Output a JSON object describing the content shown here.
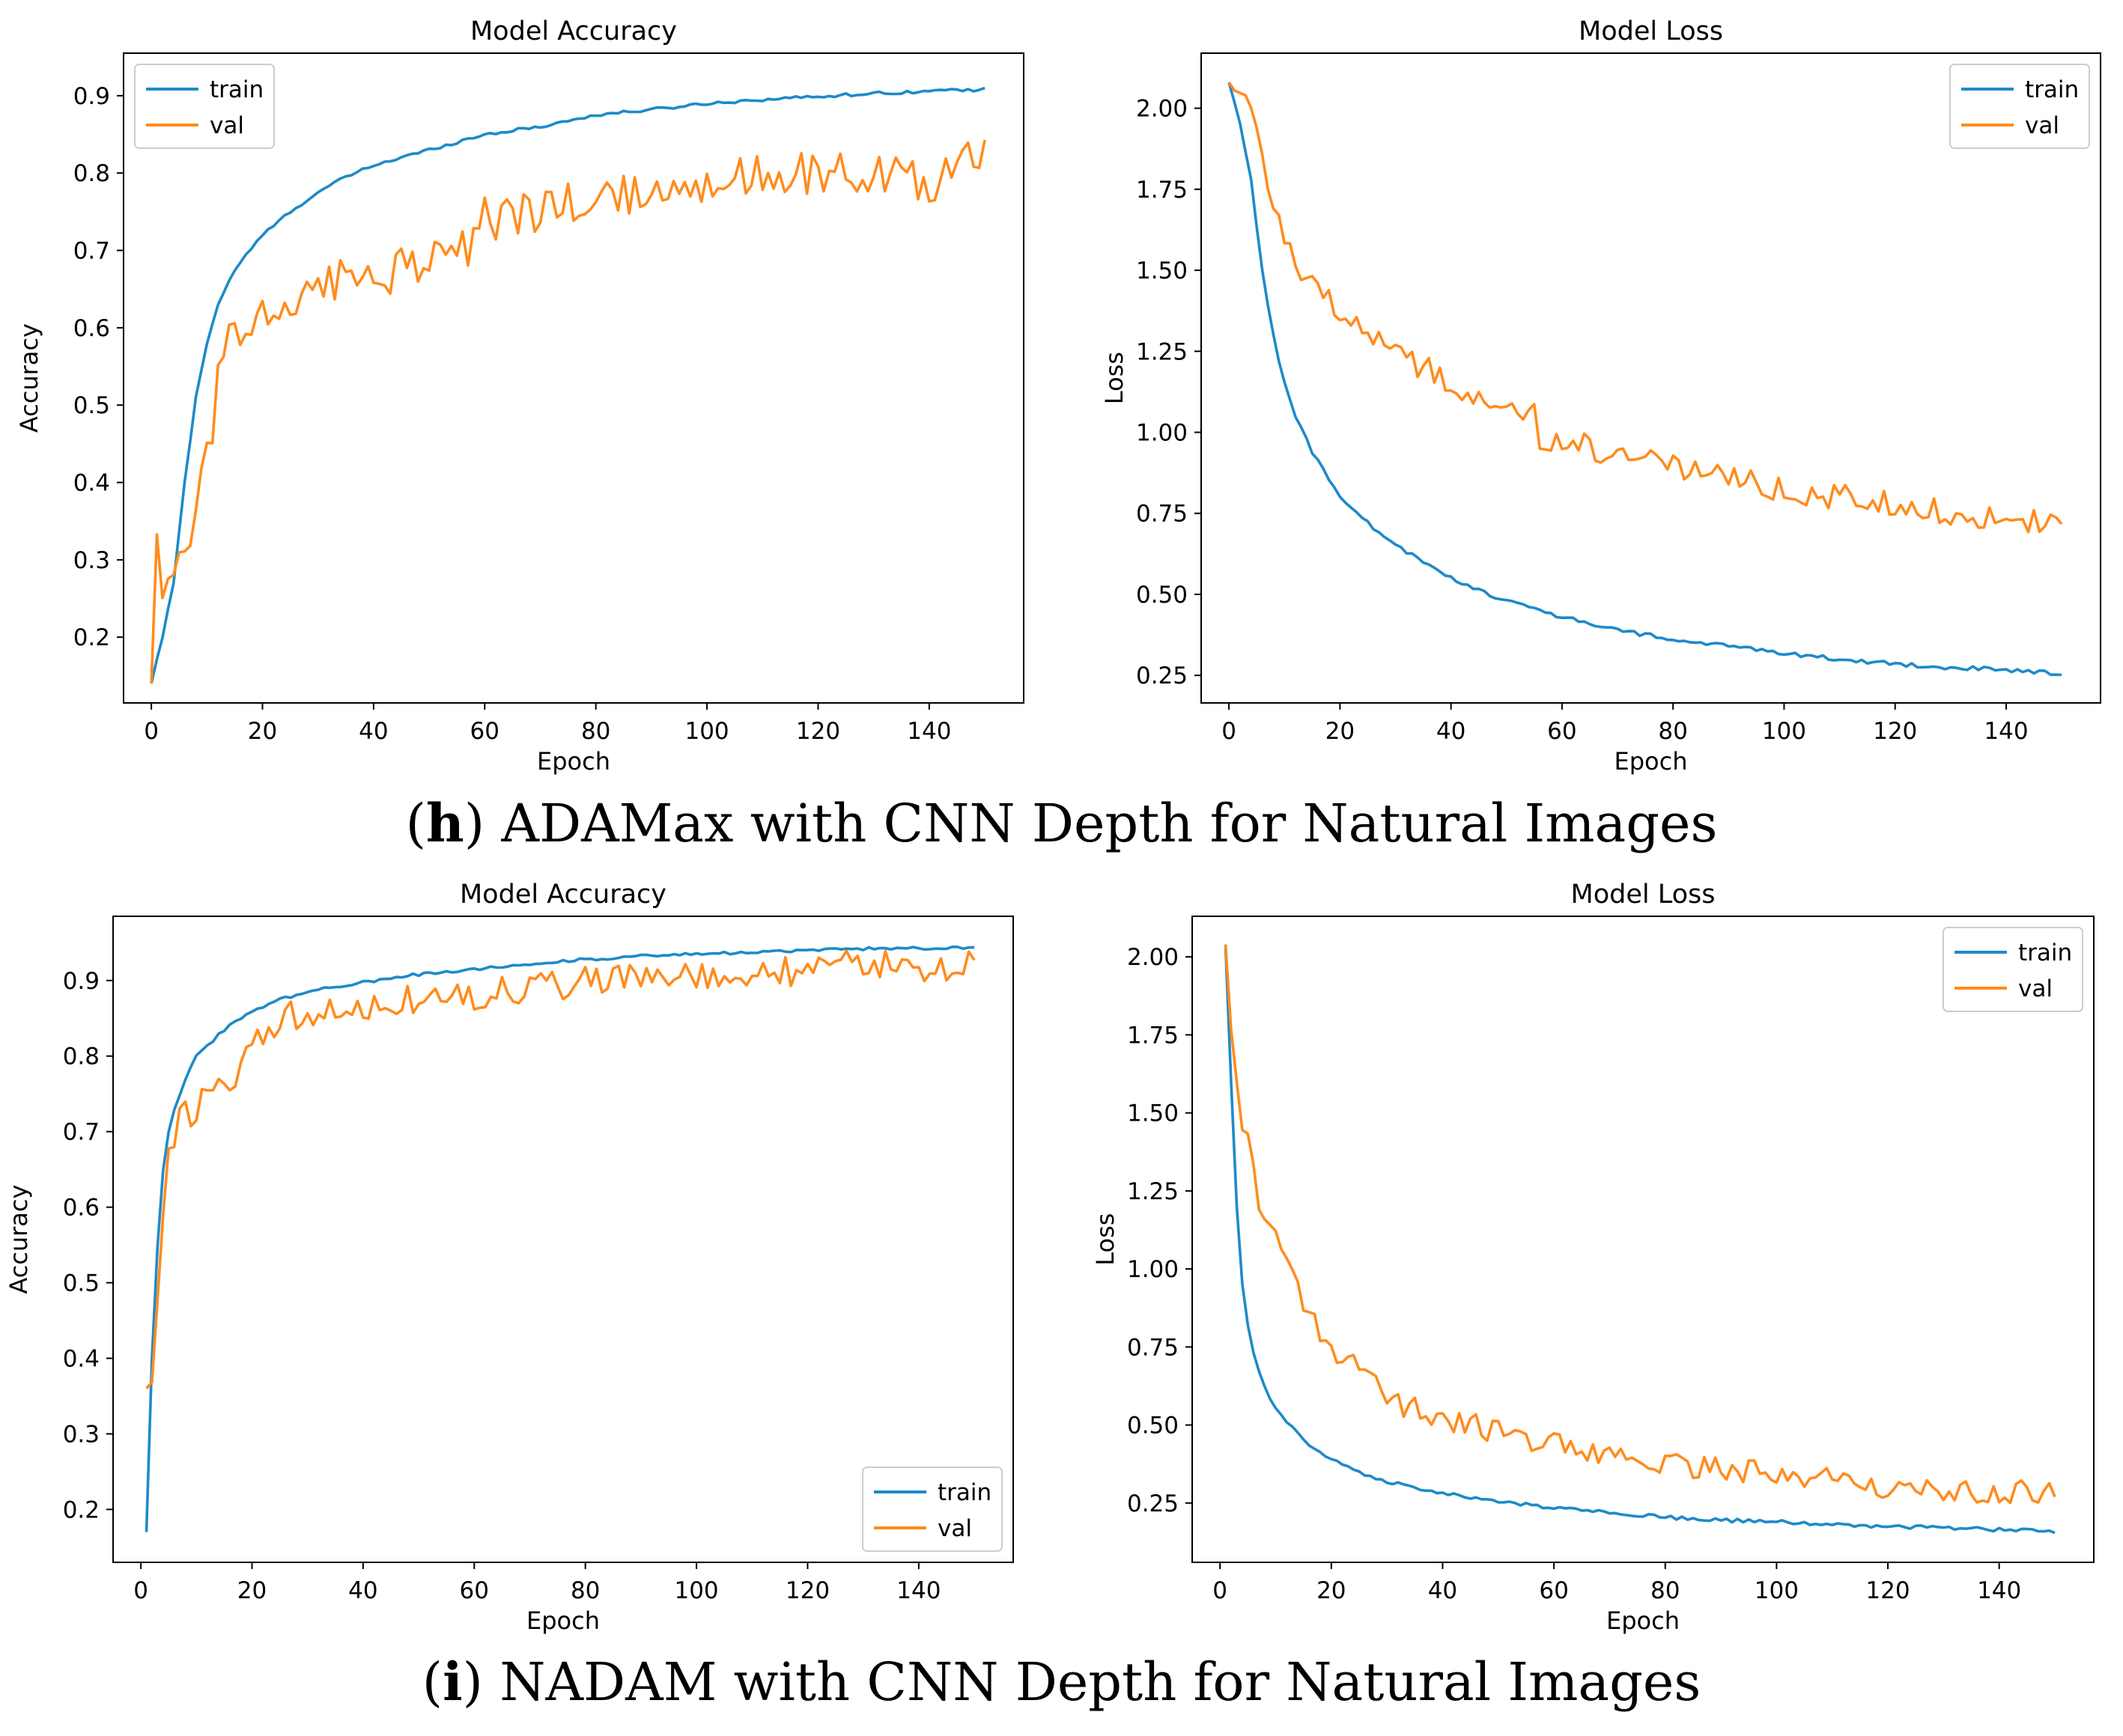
{
  "captions": [
    {
      "letter": "h",
      "text": " ADAMax with CNN Depth for Natural Images"
    },
    {
      "letter": "i",
      "text": " NADAM with CNN Depth for Natural Images"
    }
  ],
  "colors": {
    "train": "#1f8ac8",
    "val": "#ff8c1e",
    "axis": "#000000"
  },
  "chart_data": [
    {
      "id": "h-accuracy",
      "type": "line",
      "title": "Model Accuracy",
      "xlabel": "Epoch",
      "ylabel": "Accuracy",
      "xlim": [
        -5,
        157
      ],
      "ylim": [
        0.115,
        0.955
      ],
      "xticks": [
        0,
        20,
        40,
        60,
        80,
        100,
        120,
        140
      ],
      "yticks": [
        0.2,
        0.3,
        0.4,
        0.5,
        0.6,
        0.7,
        0.8,
        0.9
      ],
      "ytick_labels": [
        "0.2",
        "0.3",
        "0.4",
        "0.5",
        "0.6",
        "0.7",
        "0.8",
        "0.9"
      ],
      "legend": "top-left",
      "series": [
        {
          "name": "train",
          "color": "#1f8ac8",
          "noise": 0.002,
          "points": [
            [
              0,
              0.14
            ],
            [
              2,
              0.2
            ],
            [
              4,
              0.27
            ],
            [
              6,
              0.4
            ],
            [
              8,
              0.51
            ],
            [
              10,
              0.58
            ],
            [
              12,
              0.63
            ],
            [
              15,
              0.675
            ],
            [
              20,
              0.72
            ],
            [
              25,
              0.75
            ],
            [
              30,
              0.775
            ],
            [
              35,
              0.795
            ],
            [
              40,
              0.81
            ],
            [
              50,
              0.83
            ],
            [
              60,
              0.85
            ],
            [
              70,
              0.86
            ],
            [
              80,
              0.875
            ],
            [
              90,
              0.882
            ],
            [
              100,
              0.89
            ],
            [
              110,
              0.895
            ],
            [
              120,
              0.899
            ],
            [
              130,
              0.903
            ],
            [
              140,
              0.906
            ],
            [
              150,
              0.908
            ]
          ]
        },
        {
          "name": "val",
          "color": "#ff8c1e",
          "noise": 0.03,
          "points": [
            [
              0,
              0.14
            ],
            [
              1,
              0.33
            ],
            [
              2,
              0.28
            ],
            [
              3,
              0.26
            ],
            [
              5,
              0.3
            ],
            [
              7,
              0.34
            ],
            [
              9,
              0.41
            ],
            [
              11,
              0.47
            ],
            [
              12,
              0.58
            ],
            [
              15,
              0.59
            ],
            [
              20,
              0.62
            ],
            [
              25,
              0.63
            ],
            [
              30,
              0.65
            ],
            [
              40,
              0.67
            ],
            [
              50,
              0.68
            ],
            [
              55,
              0.69
            ],
            [
              58,
              0.72
            ],
            [
              60,
              0.74
            ],
            [
              70,
              0.75
            ],
            [
              80,
              0.77
            ],
            [
              90,
              0.78
            ],
            [
              100,
              0.79
            ],
            [
              110,
              0.795
            ],
            [
              120,
              0.8
            ],
            [
              130,
              0.8
            ],
            [
              140,
              0.79
            ],
            [
              150,
              0.82
            ]
          ]
        }
      ]
    },
    {
      "id": "h-loss",
      "type": "line",
      "title": "Model Loss",
      "xlabel": "Epoch",
      "ylabel": "Loss",
      "xlim": [
        -5,
        157
      ],
      "ylim": [
        0.165,
        2.17
      ],
      "xticks": [
        0,
        20,
        40,
        60,
        80,
        100,
        120,
        140
      ],
      "yticks": [
        0.25,
        0.5,
        0.75,
        1.0,
        1.25,
        1.5,
        1.75,
        2.0
      ],
      "ytick_labels": [
        "0.25",
        "0.50",
        "0.75",
        "1.00",
        "1.25",
        "1.50",
        "1.75",
        "2.00"
      ],
      "legend": "top-right",
      "series": [
        {
          "name": "train",
          "color": "#1f8ac8",
          "noise": 0.007,
          "points": [
            [
              0,
              2.08
            ],
            [
              2,
              1.95
            ],
            [
              4,
              1.78
            ],
            [
              6,
              1.5
            ],
            [
              8,
              1.3
            ],
            [
              10,
              1.15
            ],
            [
              12,
              1.05
            ],
            [
              15,
              0.94
            ],
            [
              20,
              0.8
            ],
            [
              25,
              0.72
            ],
            [
              30,
              0.65
            ],
            [
              35,
              0.6
            ],
            [
              40,
              0.55
            ],
            [
              50,
              0.48
            ],
            [
              60,
              0.43
            ],
            [
              70,
              0.39
            ],
            [
              80,
              0.36
            ],
            [
              90,
              0.34
            ],
            [
              100,
              0.32
            ],
            [
              110,
              0.3
            ],
            [
              120,
              0.285
            ],
            [
              130,
              0.275
            ],
            [
              140,
              0.265
            ],
            [
              150,
              0.255
            ]
          ]
        },
        {
          "name": "val",
          "color": "#ff8c1e",
          "noise": 0.04,
          "points": [
            [
              0,
              2.08
            ],
            [
              3,
              2.03
            ],
            [
              6,
              1.85
            ],
            [
              9,
              1.65
            ],
            [
              12,
              1.52
            ],
            [
              15,
              1.48
            ],
            [
              20,
              1.38
            ],
            [
              25,
              1.3
            ],
            [
              30,
              1.25
            ],
            [
              35,
              1.2
            ],
            [
              40,
              1.15
            ],
            [
              45,
              1.12
            ],
            [
              50,
              1.08
            ],
            [
              55,
              1.06
            ],
            [
              56,
              0.98
            ],
            [
              60,
              0.97
            ],
            [
              65,
              0.96
            ],
            [
              70,
              0.92
            ],
            [
              80,
              0.9
            ],
            [
              90,
              0.86
            ],
            [
              100,
              0.82
            ],
            [
              110,
              0.8
            ],
            [
              120,
              0.78
            ],
            [
              130,
              0.75
            ],
            [
              140,
              0.74
            ],
            [
              150,
              0.7
            ]
          ]
        }
      ]
    },
    {
      "id": "i-accuracy",
      "type": "line",
      "title": "Model Accuracy",
      "xlabel": "Epoch",
      "ylabel": "Accuracy",
      "xlim": [
        -5,
        157
      ],
      "ylim": [
        0.13,
        0.985
      ],
      "xticks": [
        0,
        20,
        40,
        60,
        80,
        100,
        120,
        140
      ],
      "yticks": [
        0.2,
        0.3,
        0.4,
        0.5,
        0.6,
        0.7,
        0.8,
        0.9
      ],
      "ytick_labels": [
        "0.2",
        "0.3",
        "0.4",
        "0.5",
        "0.6",
        "0.7",
        "0.8",
        "0.9"
      ],
      "legend": "bottom-right",
      "series": [
        {
          "name": "train",
          "color": "#1f8ac8",
          "noise": 0.002,
          "points": [
            [
              1,
              0.17
            ],
            [
              2,
              0.4
            ],
            [
              3,
              0.55
            ],
            [
              4,
              0.65
            ],
            [
              5,
              0.7
            ],
            [
              6,
              0.73
            ],
            [
              8,
              0.77
            ],
            [
              10,
              0.8
            ],
            [
              15,
              0.835
            ],
            [
              20,
              0.86
            ],
            [
              25,
              0.875
            ],
            [
              30,
              0.885
            ],
            [
              40,
              0.898
            ],
            [
              50,
              0.908
            ],
            [
              60,
              0.915
            ],
            [
              70,
              0.922
            ],
            [
              80,
              0.928
            ],
            [
              90,
              0.932
            ],
            [
              100,
              0.935
            ],
            [
              110,
              0.937
            ],
            [
              120,
              0.94
            ],
            [
              130,
              0.942
            ],
            [
              140,
              0.943
            ],
            [
              150,
              0.944
            ]
          ]
        },
        {
          "name": "val",
          "color": "#ff8c1e",
          "noise": 0.022,
          "points": [
            [
              1,
              0.36
            ],
            [
              2,
              0.38
            ],
            [
              3,
              0.5
            ],
            [
              4,
              0.6
            ],
            [
              5,
              0.66
            ],
            [
              6,
              0.67
            ],
            [
              7,
              0.72
            ],
            [
              10,
              0.73
            ],
            [
              13,
              0.75
            ],
            [
              15,
              0.77
            ],
            [
              18,
              0.78
            ],
            [
              20,
              0.8
            ],
            [
              22,
              0.83
            ],
            [
              25,
              0.85
            ],
            [
              30,
              0.86
            ],
            [
              40,
              0.87
            ],
            [
              50,
              0.875
            ],
            [
              60,
              0.88
            ],
            [
              70,
              0.89
            ],
            [
              80,
              0.9
            ],
            [
              90,
              0.9
            ],
            [
              100,
              0.905
            ],
            [
              110,
              0.91
            ],
            [
              120,
              0.915
            ],
            [
              130,
              0.92
            ],
            [
              140,
              0.92
            ],
            [
              150,
              0.92
            ]
          ]
        }
      ]
    },
    {
      "id": "i-loss",
      "type": "line",
      "title": "Model Loss",
      "xlabel": "Epoch",
      "ylabel": "Loss",
      "xlim": [
        -5,
        157
      ],
      "ylim": [
        0.06,
        2.13
      ],
      "xticks": [
        0,
        20,
        40,
        60,
        80,
        100,
        120,
        140
      ],
      "yticks": [
        0.25,
        0.5,
        0.75,
        1.0,
        1.25,
        1.5,
        1.75,
        2.0
      ],
      "ytick_labels": [
        "0.25",
        "0.50",
        "0.75",
        "1.00",
        "1.25",
        "1.50",
        "1.75",
        "2.00"
      ],
      "legend": "top-right",
      "series": [
        {
          "name": "train",
          "color": "#1f8ac8",
          "noise": 0.006,
          "points": [
            [
              1,
              2.03
            ],
            [
              2,
              1.6
            ],
            [
              3,
              1.2
            ],
            [
              4,
              0.95
            ],
            [
              5,
              0.82
            ],
            [
              6,
              0.73
            ],
            [
              8,
              0.62
            ],
            [
              10,
              0.55
            ],
            [
              13,
              0.49
            ],
            [
              16,
              0.44
            ],
            [
              20,
              0.39
            ],
            [
              25,
              0.35
            ],
            [
              30,
              0.32
            ],
            [
              40,
              0.28
            ],
            [
              50,
              0.255
            ],
            [
              60,
              0.235
            ],
            [
              70,
              0.22
            ],
            [
              80,
              0.205
            ],
            [
              90,
              0.195
            ],
            [
              100,
              0.19
            ],
            [
              110,
              0.18
            ],
            [
              120,
              0.175
            ],
            [
              130,
              0.17
            ],
            [
              140,
              0.165
            ],
            [
              150,
              0.16
            ]
          ]
        },
        {
          "name": "val",
          "color": "#ff8c1e",
          "noise": 0.04,
          "points": [
            [
              1,
              2.04
            ],
            [
              2,
              1.8
            ],
            [
              3,
              1.6
            ],
            [
              4,
              1.45
            ],
            [
              6,
              1.35
            ],
            [
              7,
              1.2
            ],
            [
              10,
              1.1
            ],
            [
              12,
              1.0
            ],
            [
              14,
              0.95
            ],
            [
              16,
              0.85
            ],
            [
              18,
              0.8
            ],
            [
              20,
              0.75
            ],
            [
              22,
              0.7
            ],
            [
              25,
              0.68
            ],
            [
              28,
              0.62
            ],
            [
              32,
              0.57
            ],
            [
              36,
              0.54
            ],
            [
              40,
              0.52
            ],
            [
              45,
              0.5
            ],
            [
              50,
              0.48
            ],
            [
              55,
              0.46
            ],
            [
              60,
              0.44
            ],
            [
              70,
              0.41
            ],
            [
              80,
              0.38
            ],
            [
              90,
              0.36
            ],
            [
              100,
              0.34
            ],
            [
              110,
              0.32
            ],
            [
              120,
              0.3
            ],
            [
              130,
              0.29
            ],
            [
              140,
              0.29
            ],
            [
              150,
              0.28
            ]
          ]
        }
      ]
    }
  ]
}
